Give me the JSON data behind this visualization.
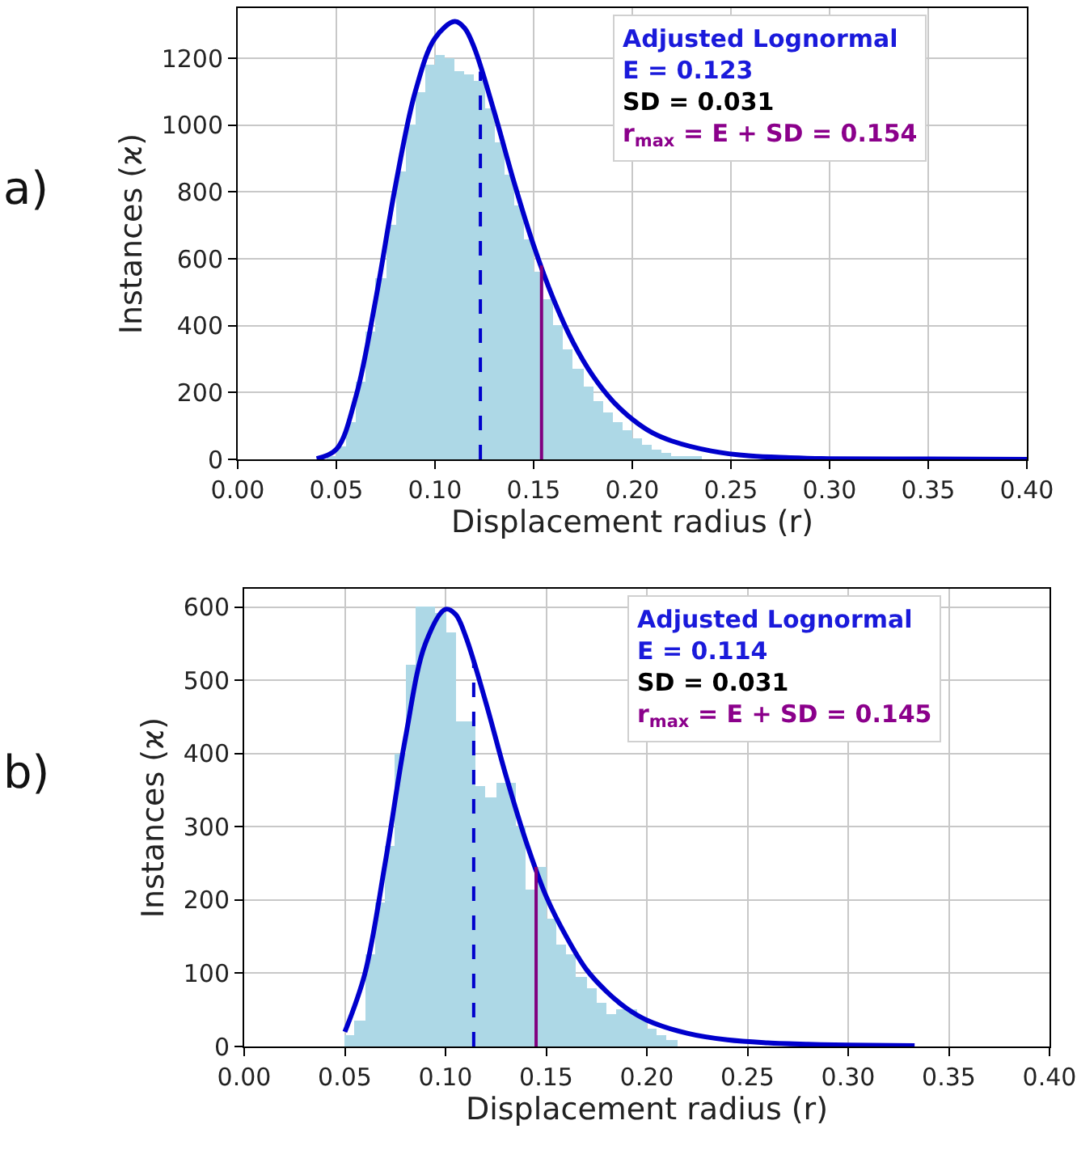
{
  "chart_data": [
    {
      "type": "histogram",
      "xlabel": "Displacement radius (r)",
      "ylabel": "Instances (ϰ)",
      "color": "#add8e6",
      "bins": [
        0.04,
        0.045,
        0.05,
        0.055,
        0.06,
        0.065,
        0.07,
        0.075,
        0.08,
        0.085,
        0.09,
        0.095,
        0.1,
        0.105,
        0.11,
        0.115,
        0.12,
        0.125,
        0.13,
        0.135,
        0.14,
        0.145,
        0.15,
        0.155,
        0.16,
        0.165,
        0.17,
        0.175,
        0.18,
        0.185,
        0.19,
        0.195,
        0.2,
        0.205,
        0.21,
        0.215,
        0.22,
        0.225,
        0.23,
        0.235,
        0.24,
        0.245
      ],
      "values": [
        null,
        10,
        40,
        110,
        230,
        380,
        540,
        700,
        860,
        1000,
        1100,
        1180,
        1210,
        1200,
        1160,
        1150,
        1130,
        1050,
        950,
        850,
        760,
        660,
        560,
        480,
        400,
        330,
        270,
        220,
        175,
        140,
        110,
        85,
        65,
        45,
        30,
        20,
        12,
        8,
        5,
        null,
        null
      ],
      "series": [
        {
          "type": "line",
          "color": "#0000cc",
          "x": [
            0.04,
            0.05,
            0.06,
            0.07,
            0.08,
            0.09,
            0.1,
            0.11,
            0.115,
            0.12,
            0.13,
            0.14,
            0.15,
            0.16,
            0.17,
            0.18,
            0.19,
            0.2,
            0.21,
            0.22,
            0.24,
            0.26,
            0.28,
            0.3,
            0.35,
            0.4
          ],
          "values": [
            2,
            30,
            190,
            480,
            820,
            1100,
            1260,
            1310,
            1290,
            1230,
            1040,
            830,
            640,
            480,
            350,
            250,
            175,
            120,
            80,
            55,
            25,
            10,
            5,
            2,
            1,
            0
          ]
        },
        {
          "type": "line",
          "color": "#0000cc",
          "line_style": "dashed",
          "x": [
            0.123,
            0.123
          ],
          "values": [
            0,
            1160
          ]
        },
        {
          "type": "line",
          "color": "#800080",
          "x": [
            0.154,
            0.154
          ],
          "values": [
            0,
            580
          ]
        }
      ],
      "xlim": [
        0,
        0.4
      ],
      "ylim": [
        0,
        1350
      ],
      "xticks": [
        {
          "value": 0,
          "label": "0.00"
        },
        {
          "value": 0.05,
          "label": "0.05"
        },
        {
          "value": 0.1,
          "label": "0.10"
        },
        {
          "value": 0.15,
          "label": "0.15"
        },
        {
          "value": 0.2,
          "label": "0.20"
        },
        {
          "value": 0.25,
          "label": "0.25"
        },
        {
          "value": 0.3,
          "label": "0.30"
        },
        {
          "value": 0.35,
          "label": "0.35"
        },
        {
          "value": 0.4,
          "label": "0.40"
        }
      ],
      "yticks": [
        0,
        200,
        400,
        600,
        800,
        1000,
        1200
      ],
      "grid": true,
      "annotations": [
        "a)",
        "Adjusted Lognormal",
        "E = 0.123",
        "SD = 0.031",
        "r$_{max}$ = E + SD = 0.154"
      ]
    },
    {
      "type": "histogram",
      "xlabel": "Displacement radius (r)",
      "ylabel": "Instances (ϰ)",
      "color": "#add8e6",
      "bins": [
        0.05,
        0.055,
        0.06,
        0.065,
        0.07,
        0.075,
        0.08,
        0.085,
        0.09,
        0.095,
        0.1,
        0.105,
        0.11,
        0.115,
        0.12,
        0.125,
        0.13,
        0.135,
        0.14,
        0.145,
        0.15,
        0.155,
        0.16,
        0.165,
        0.17,
        0.175,
        0.18,
        0.185,
        0.19,
        0.195,
        0.2,
        0.205,
        0.21,
        0.215
      ],
      "values": [
        16,
        35,
        125,
        197,
        274,
        400,
        521,
        600,
        600,
        591,
        565,
        445,
        445,
        355,
        340,
        360,
        360,
        300,
        215,
        245,
        175,
        140,
        125,
        95,
        80,
        60,
        45,
        50,
        50,
        40,
        25,
        15,
        8
      ],
      "series": [
        {
          "type": "line",
          "color": "#0000cc",
          "x": [
            0.05,
            0.06,
            0.07,
            0.08,
            0.09,
            0.1,
            0.105,
            0.11,
            0.12,
            0.13,
            0.14,
            0.15,
            0.16,
            0.17,
            0.18,
            0.19,
            0.2,
            0.22,
            0.24,
            0.26,
            0.28,
            0.3,
            0.333
          ],
          "values": [
            20,
            100,
            250,
            420,
            550,
            597,
            590,
            560,
            470,
            370,
            280,
            205,
            150,
            105,
            75,
            52,
            36,
            18,
            9,
            5,
            3,
            2,
            1
          ]
        },
        {
          "type": "line",
          "color": "#0000cc",
          "line_style": "dashed",
          "x": [
            0.114,
            0.114
          ],
          "values": [
            0,
            530
          ]
        },
        {
          "type": "line",
          "color": "#800080",
          "x": [
            0.145,
            0.145
          ],
          "values": [
            0,
            245
          ]
        }
      ],
      "xlim": [
        0,
        0.4
      ],
      "ylim": [
        0,
        625
      ],
      "xticks": [
        {
          "value": 0,
          "label": "0.00"
        },
        {
          "value": 0.05,
          "label": "0.05"
        },
        {
          "value": 0.1,
          "label": "0.10"
        },
        {
          "value": 0.15,
          "label": "0.15"
        },
        {
          "value": 0.2,
          "label": "0.20"
        },
        {
          "value": 0.25,
          "label": "0.25"
        },
        {
          "value": 0.3,
          "label": "0.30"
        },
        {
          "value": 0.35,
          "label": "0.35"
        },
        {
          "value": 0.4,
          "label": "0.40"
        }
      ],
      "yticks": [
        0,
        100,
        200,
        300,
        400,
        500,
        600
      ],
      "grid": true,
      "annotations": [
        "b)",
        "Adjusted Lognormal",
        "E = 0.114",
        "SD = 0.031",
        "r$_{max}$ = E + SD = 0.145"
      ]
    }
  ]
}
